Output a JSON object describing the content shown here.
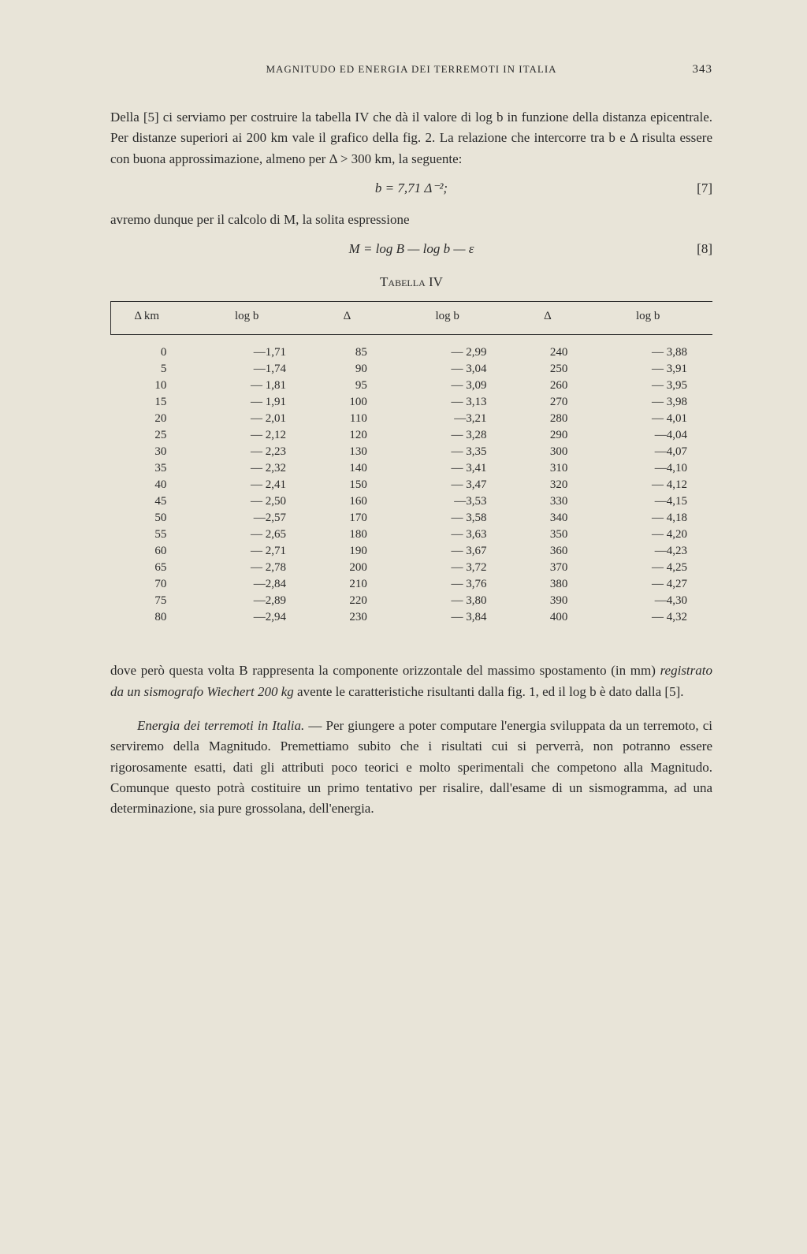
{
  "header": {
    "running_title": "MAGNITUDO ED ENERGIA DEI TERREMOTI IN ITALIA",
    "page_number": "343"
  },
  "para1": "Della [5] ci serviamo per costruire la tabella IV che dà il valore di log b in funzione della distanza epicentrale. Per distanze superiori ai 200 km vale il grafico della fig. 2. La relazione che intercorre tra b e Δ risulta essere con buona approssimazione, almeno per Δ > 300 km, la seguente:",
  "formula1": {
    "expr": "b = 7,71 Δ⁻²;",
    "ref": "[7]"
  },
  "para2": "avremo dunque per il calcolo di M, la solita espressione",
  "formula2": {
    "expr": "M = log  B — log  b — ε",
    "ref": "[8]"
  },
  "table": {
    "caption": "Tabella IV",
    "headers": [
      "Δ km",
      "log b",
      "Δ",
      "log b",
      "Δ",
      "log b"
    ],
    "rows": [
      [
        "0",
        "—1,71",
        "85",
        "— 2,99",
        "240",
        "— 3,88"
      ],
      [
        "5",
        "—1,74",
        "90",
        "— 3,04",
        "250",
        "— 3,91"
      ],
      [
        "10",
        "— 1,81",
        "95",
        "— 3,09",
        "260",
        "— 3,95"
      ],
      [
        "15",
        "— 1,91",
        "100",
        "— 3,13",
        "270",
        "— 3,98"
      ],
      [
        "20",
        "— 2,01",
        "110",
        "—3,21",
        "280",
        "— 4,01"
      ],
      [
        "25",
        "— 2,12",
        "120",
        "— 3,28",
        "290",
        "—4,04"
      ],
      [
        "30",
        "— 2,23",
        "130",
        "— 3,35",
        "300",
        "—4,07"
      ],
      [
        "35",
        "— 2,32",
        "140",
        "— 3,41",
        "310",
        "—4,10"
      ],
      [
        "40",
        "— 2,41",
        "150",
        "— 3,47",
        "320",
        "— 4,12"
      ],
      [
        "45",
        "— 2,50",
        "160",
        "—3,53",
        "330",
        "—4,15"
      ],
      [
        "50",
        "—2,57",
        "170",
        "— 3,58",
        "340",
        "— 4,18"
      ],
      [
        "55",
        "— 2,65",
        "180",
        "— 3,63",
        "350",
        "— 4,20"
      ],
      [
        "60",
        "— 2,71",
        "190",
        "— 3,67",
        "360",
        "—4,23"
      ],
      [
        "65",
        "— 2,78",
        "200",
        "— 3,72",
        "370",
        "— 4,25"
      ],
      [
        "70",
        "—2,84",
        "210",
        "— 3,76",
        "380",
        "— 4,27"
      ],
      [
        "75",
        "—2,89",
        "220",
        "— 3,80",
        "390",
        "—4,30"
      ],
      [
        "80",
        "—2,94",
        "230",
        "— 3,84",
        "400",
        "— 4,32"
      ]
    ]
  },
  "para3_pre": "dove però questa volta B rappresenta la componente orizzontale del massimo spostamento (in mm) ",
  "para3_italic": "registrato da un sismografo Wiechert 200 kg",
  "para3_post": " avente le caratteristiche risultanti dalla fig. 1, ed il log b è dato dalla [5].",
  "para4_ital": "Energia dei terremoti in Italia.",
  "para4_rest": " — Per giungere a poter computare l'energia sviluppata da un terremoto, ci serviremo della Magnitudo. Premettiamo subito che i risultati cui si perverrà, non potranno essere rigorosamente esatti, dati gli attributi poco teorici e molto sperimentali che competono alla Magnitudo. Comunque questo potrà costituire un primo tentativo per risalire, dall'esame di un sismogramma, ad una determinazione, sia pure grossolana, dell'energia."
}
